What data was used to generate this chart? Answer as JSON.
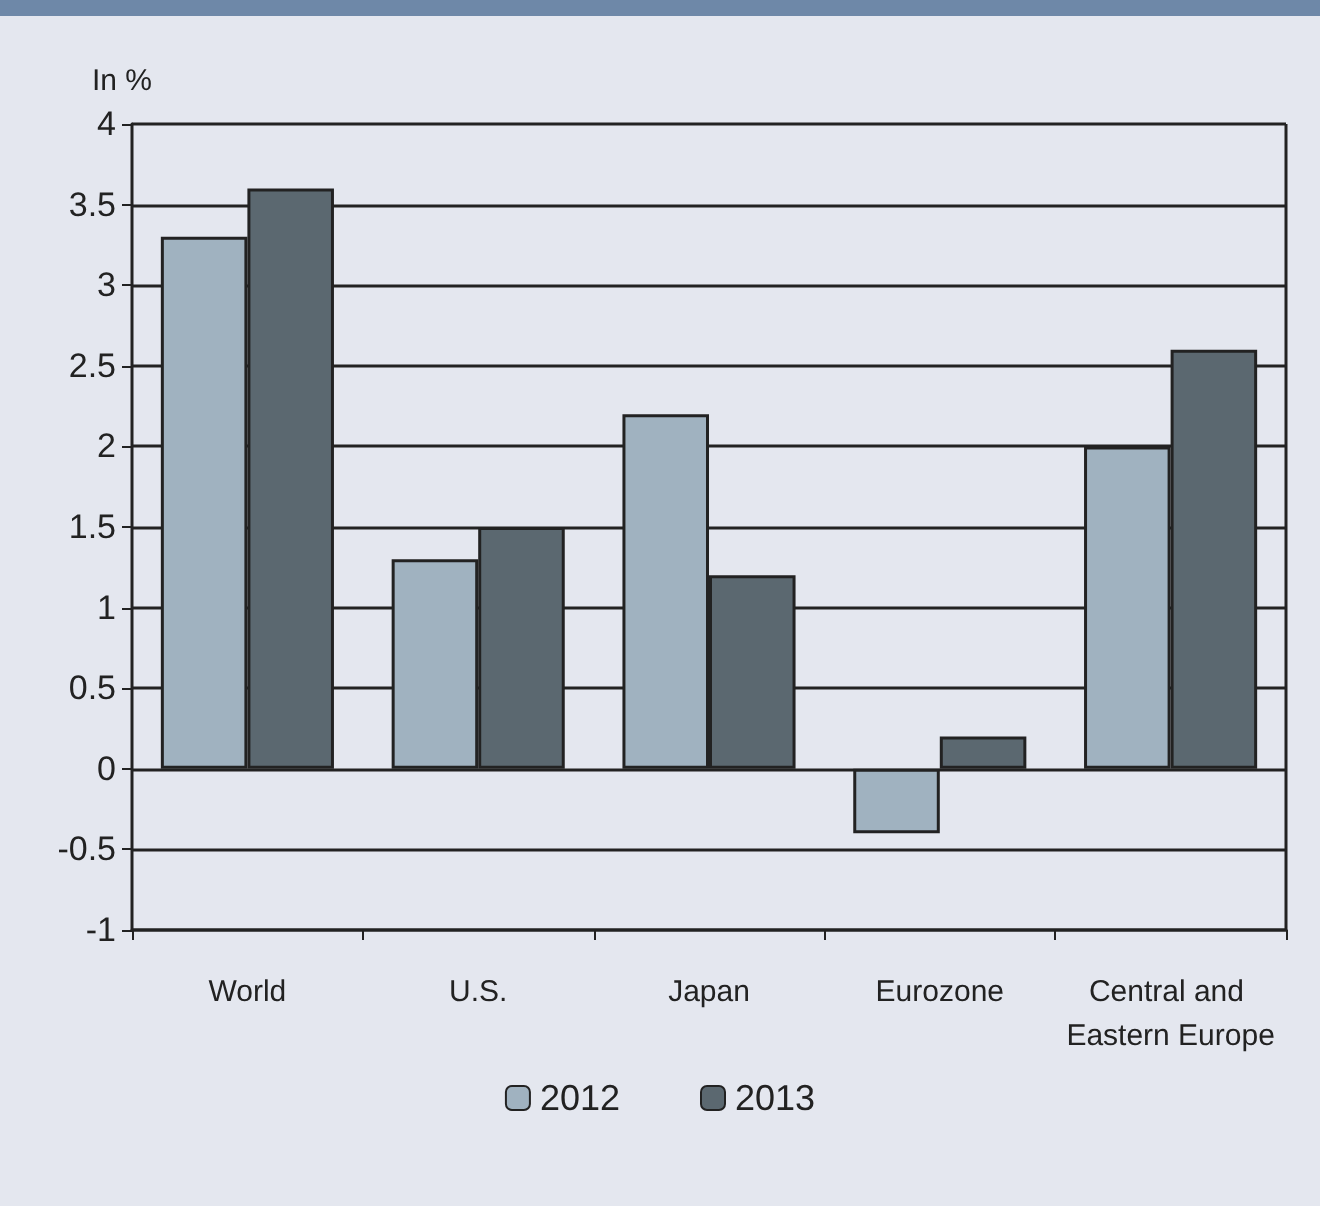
{
  "chart_data": {
    "type": "bar",
    "ylabel": "In %",
    "categories": [
      "World",
      "U.S.",
      "Japan",
      "Eurozone",
      "Central and Eastern Europe"
    ],
    "series": [
      {
        "name": "2012",
        "color": "#a0b2c0",
        "values": [
          3.3,
          1.3,
          2.2,
          -0.4,
          2.0
        ]
      },
      {
        "name": "2013",
        "color": "#5b6870",
        "values": [
          3.6,
          1.5,
          1.2,
          0.2,
          2.6
        ]
      }
    ],
    "ylim": [
      -1,
      4
    ],
    "yticks": [
      -1,
      -0.5,
      0,
      0.5,
      1,
      1.5,
      2,
      2.5,
      3,
      3.5,
      4
    ],
    "grid": "y",
    "legend": "bottom"
  }
}
